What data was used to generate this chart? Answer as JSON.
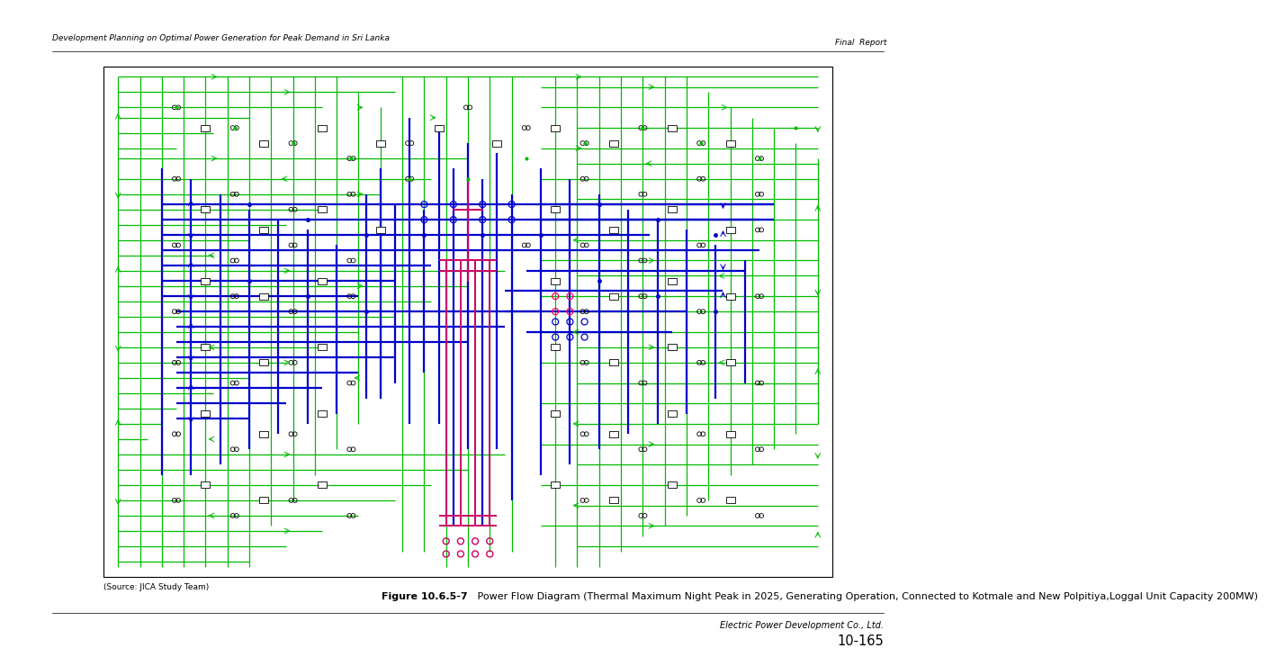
{
  "page_bg": "#ffffff",
  "header_left": "Development Planning on Optimal Power Generation for Peak Demand in Sri Lanka",
  "header_right": "Final  Report",
  "source_note": "(Source: JICA Study Team)",
  "figure_caption_bold": "Figure 10.6.5-7",
  "figure_caption_normal": "   Power Flow Diagram (Thermal Maximum Night Peak in 2025, Generating Operation, Connected to Kotmale and New Polpitiya,Loggal Unit Capacity 200MW)",
  "footer_right_top": "Electric Power Development Co., Ltd.",
  "footer_right_bottom": "10-165",
  "header_fontsize": 6.5,
  "caption_fontsize": 8.0,
  "footer_fontsize": 7.0,
  "source_fontsize": 6.5,
  "green": "#00bb00",
  "blue": "#0000cc",
  "red": "#cc0066",
  "black": "#000000"
}
